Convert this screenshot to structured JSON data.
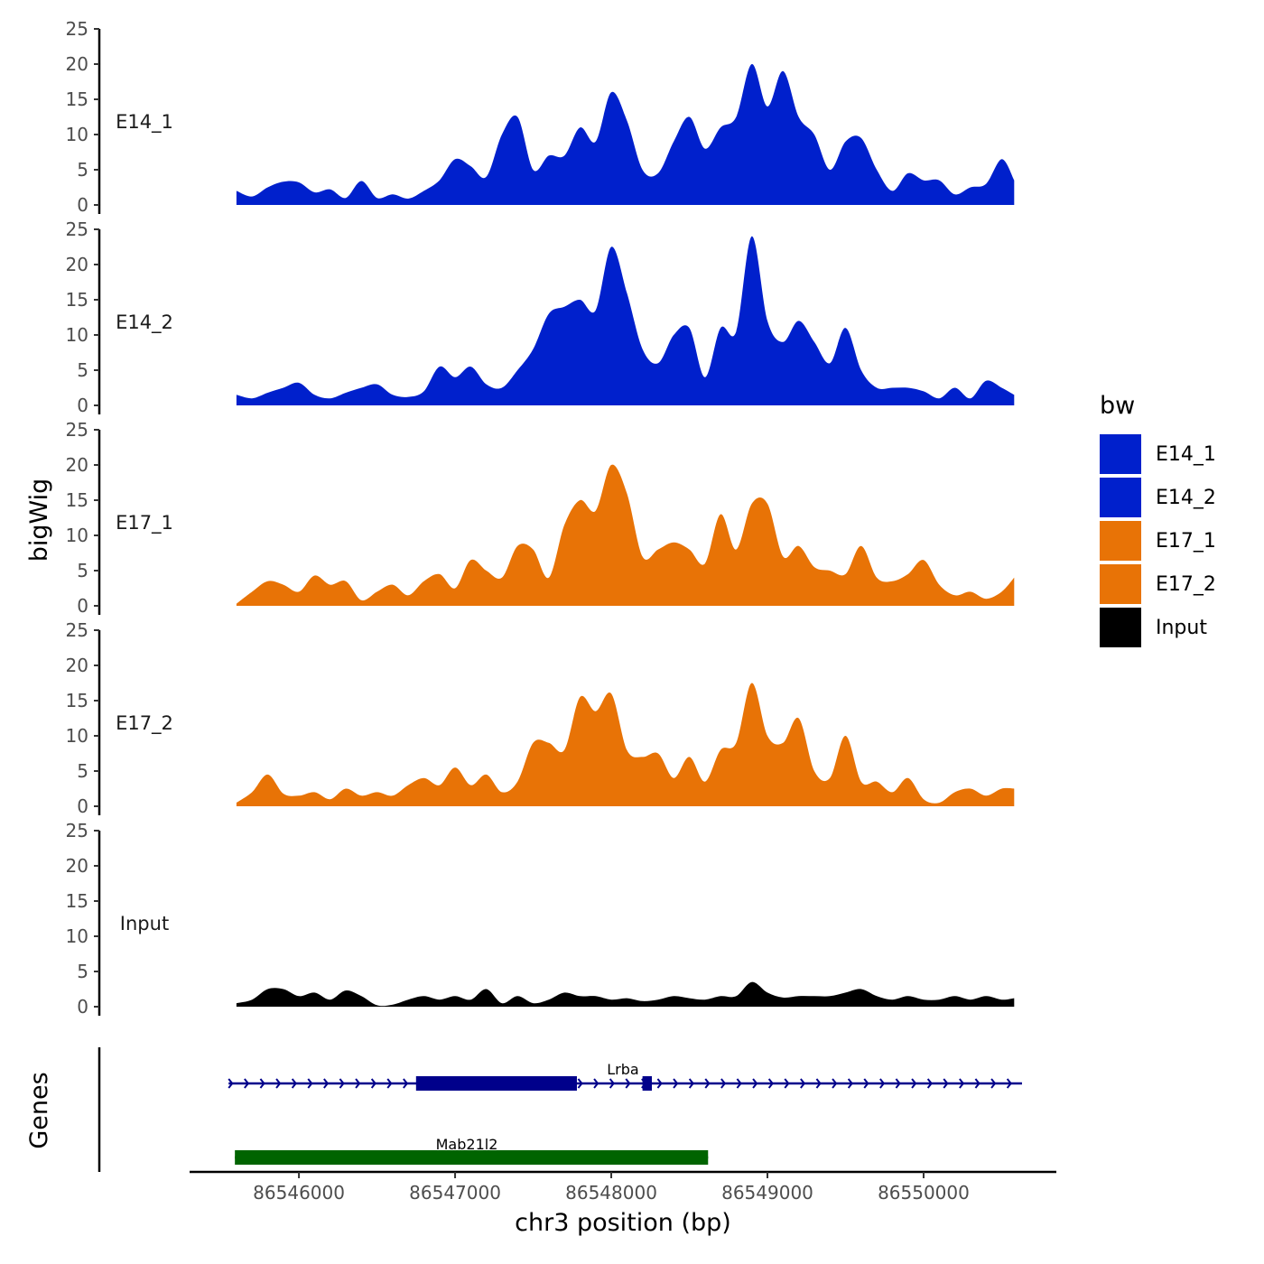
{
  "chart_data": {
    "type": "area",
    "chromosome": "chr3",
    "xlabel": "chr3 position (bp)",
    "ylabel": "bigWig",
    "genes_label": "Genes",
    "xlim": [
      86545300,
      86550850
    ],
    "ylim": [
      0,
      25
    ],
    "x_ticks": [
      86546000,
      86547000,
      86548000,
      86549000,
      86550000
    ],
    "y_ticks": [
      0,
      5,
      10,
      15,
      20,
      25
    ],
    "legend": {
      "title": "bw",
      "entries": [
        {
          "label": "E14_1",
          "color": "#0020CC"
        },
        {
          "label": "E14_2",
          "color": "#0020CC"
        },
        {
          "label": "E17_1",
          "color": "#E87306"
        },
        {
          "label": "E17_2",
          "color": "#E87306"
        },
        {
          "label": "Input",
          "color": "#000000"
        }
      ]
    },
    "x": [
      86545600,
      86545700,
      86545800,
      86545900,
      86546000,
      86546100,
      86546200,
      86546300,
      86546400,
      86546500,
      86546600,
      86546700,
      86546800,
      86546900,
      86547000,
      86547100,
      86547200,
      86547300,
      86547400,
      86547500,
      86547600,
      86547700,
      86547800,
      86547900,
      86548000,
      86548100,
      86548200,
      86548300,
      86548400,
      86548500,
      86548600,
      86548700,
      86548800,
      86548900,
      86549000,
      86549100,
      86549200,
      86549300,
      86549400,
      86549500,
      86549600,
      86549700,
      86549800,
      86549900,
      86550000,
      86550100,
      86550200,
      86550300,
      86550400,
      86550500,
      86550580
    ],
    "series": [
      {
        "name": "E14_1",
        "color": "#0020CC",
        "values": [
          2.0,
          1.2,
          2.5,
          3.3,
          3.2,
          1.8,
          2.2,
          1.0,
          3.4,
          1.0,
          1.5,
          0.9,
          2.0,
          3.5,
          6.5,
          5.5,
          4.0,
          10.0,
          12.5,
          5.0,
          7.0,
          7.0,
          11.0,
          9.0,
          16.0,
          12.0,
          5.0,
          4.5,
          9.0,
          12.5,
          8.0,
          11.0,
          12.5,
          20.0,
          14.0,
          19.0,
          12.5,
          10.0,
          5.0,
          9.0,
          9.5,
          5.0,
          2.0,
          4.5,
          3.5,
          3.5,
          1.5,
          2.5,
          3.0,
          6.5,
          3.5
        ]
      },
      {
        "name": "E14_2",
        "color": "#0020CC",
        "values": [
          1.5,
          1.0,
          1.8,
          2.5,
          3.2,
          1.5,
          1.0,
          1.8,
          2.5,
          3.0,
          1.5,
          1.2,
          2.0,
          5.5,
          4.0,
          5.5,
          3.0,
          2.5,
          5.0,
          8.0,
          13.0,
          14.0,
          15.0,
          13.5,
          22.5,
          16.0,
          8.0,
          6.0,
          10.0,
          11.0,
          4.0,
          11.0,
          10.5,
          24.0,
          12.0,
          9.0,
          12.0,
          9.0,
          6.0,
          11.0,
          5.0,
          2.5,
          2.5,
          2.5,
          2.0,
          1.0,
          2.5,
          1.0,
          3.5,
          2.5,
          1.5
        ]
      },
      {
        "name": "E17_1",
        "color": "#E87306",
        "values": [
          0.3,
          2.0,
          3.5,
          3.0,
          2.0,
          4.3,
          3.0,
          3.5,
          0.8,
          2.0,
          3.0,
          1.5,
          3.5,
          4.5,
          2.5,
          6.5,
          5.0,
          4.0,
          8.5,
          8.0,
          4.0,
          11.5,
          15.0,
          13.5,
          20.0,
          16.0,
          7.0,
          8.0,
          9.0,
          8.0,
          6.0,
          13.0,
          8.0,
          14.5,
          14.5,
          7.0,
          8.5,
          5.5,
          5.0,
          4.5,
          8.5,
          4.0,
          3.5,
          4.5,
          6.5,
          3.0,
          1.5,
          2.0,
          1.0,
          2.0,
          4.0
        ]
      },
      {
        "name": "E17_2",
        "color": "#E87306",
        "values": [
          0.5,
          2.0,
          4.5,
          1.8,
          1.5,
          2.0,
          1.0,
          2.5,
          1.5,
          2.0,
          1.5,
          3.0,
          4.0,
          3.0,
          5.5,
          3.0,
          4.5,
          2.0,
          3.5,
          9.0,
          9.0,
          8.0,
          15.5,
          13.5,
          16.0,
          8.0,
          7.0,
          7.5,
          4.0,
          7.0,
          3.5,
          8.0,
          9.0,
          17.5,
          10.0,
          9.0,
          12.5,
          5.0,
          4.0,
          10.0,
          3.5,
          3.5,
          2.0,
          4.0,
          1.0,
          0.5,
          2.0,
          2.5,
          1.5,
          2.5,
          2.5
        ]
      },
      {
        "name": "Input",
        "color": "#000000",
        "values": [
          0.5,
          1.0,
          2.5,
          2.5,
          1.5,
          2.0,
          1.0,
          2.3,
          1.5,
          0.2,
          0.3,
          1.0,
          1.5,
          1.0,
          1.5,
          1.0,
          2.5,
          0.5,
          1.5,
          0.5,
          1.0,
          2.0,
          1.5,
          1.5,
          1.0,
          1.2,
          0.8,
          1.0,
          1.5,
          1.2,
          1.0,
          1.5,
          1.5,
          3.5,
          2.0,
          1.3,
          1.5,
          1.5,
          1.5,
          2.0,
          2.5,
          1.5,
          1.0,
          1.5,
          1.0,
          1.0,
          1.5,
          1.0,
          1.5,
          1.0,
          1.2
        ]
      }
    ],
    "genes": [
      {
        "name": "Lrba",
        "color": "#00008B",
        "start": 86545550,
        "end": 86550630,
        "strand": "+",
        "exons": [
          [
            86546750,
            86547780
          ],
          [
            86548200,
            86548260
          ]
        ]
      },
      {
        "name": "Mab21l2",
        "color": "#006400",
        "start": 86545590,
        "end": 86548620,
        "strand": "-",
        "exons": [
          [
            86545590,
            86548620
          ]
        ]
      }
    ]
  }
}
